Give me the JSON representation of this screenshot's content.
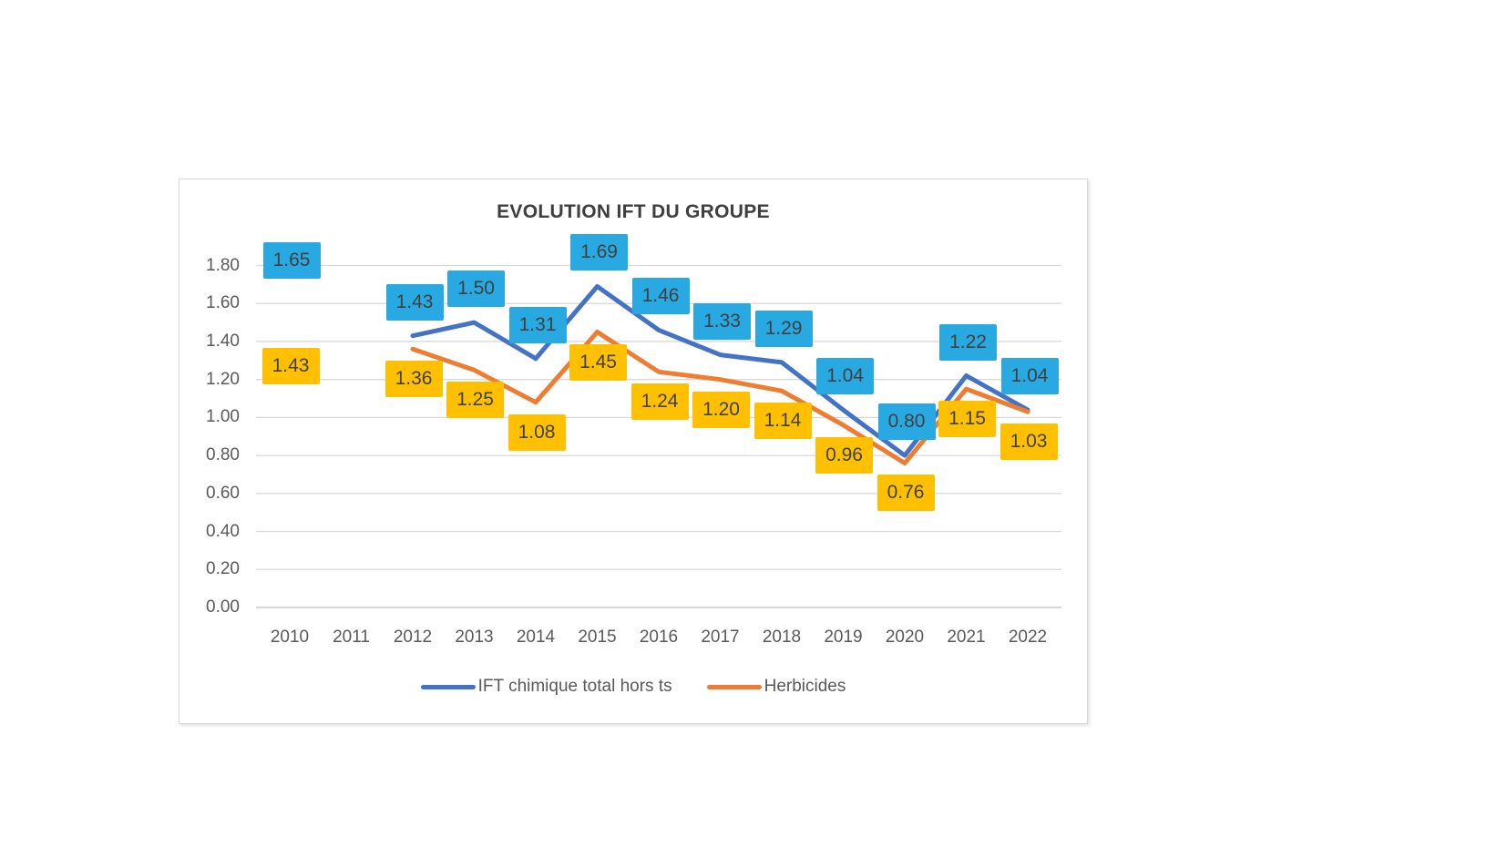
{
  "chart_data": {
    "type": "line",
    "title": "EVOLUTION IFT DU GROUPE",
    "categories": [
      "2010",
      "2011",
      "2012",
      "2013",
      "2014",
      "2015",
      "2016",
      "2017",
      "2018",
      "2019",
      "2020",
      "2021",
      "2022"
    ],
    "series": [
      {
        "name": "IFT chimique total hors ts",
        "line_color": "#4472C4",
        "label_bg": "#29A9E1",
        "values": [
          1.65,
          null,
          1.43,
          1.5,
          1.31,
          1.69,
          1.46,
          1.33,
          1.29,
          1.04,
          0.8,
          1.22,
          1.04
        ],
        "label_position": "above"
      },
      {
        "name": "Herbicides",
        "line_color": "#ED7D31",
        "label_bg": "#FFC000",
        "values": [
          1.43,
          null,
          1.36,
          1.25,
          1.08,
          1.45,
          1.24,
          1.2,
          1.14,
          0.96,
          0.76,
          1.15,
          1.03
        ],
        "label_position": "below"
      }
    ],
    "y_ticks": [
      "0.00",
      "0.20",
      "0.40",
      "0.60",
      "0.80",
      "1.00",
      "1.20",
      "1.40",
      "1.60",
      "1.80"
    ],
    "ylim": [
      0,
      1.8
    ],
    "grid": true,
    "legend_position": "bottom",
    "label_text_color": "#404040",
    "axis_text_color": "#595959",
    "gridline_color": "#D9D9D9",
    "axisline_color": "#BFBFBF"
  }
}
